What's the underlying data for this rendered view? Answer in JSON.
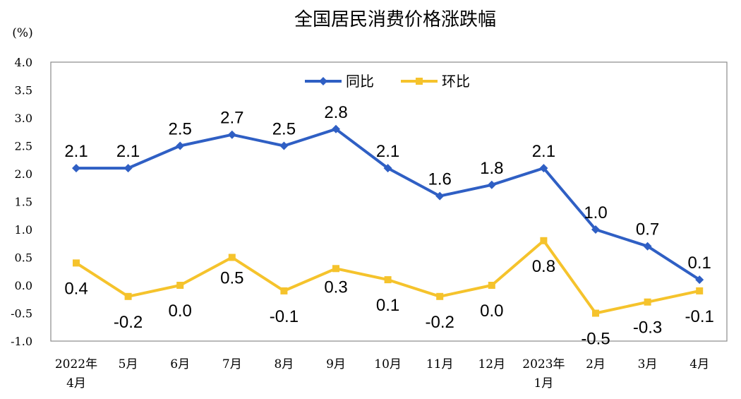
{
  "chart_data": {
    "type": "line",
    "title": "全国居民消费价格涨跌幅",
    "unit_label": "(%)",
    "categories": [
      [
        "2022年",
        "4月"
      ],
      [
        "5月"
      ],
      [
        "6月"
      ],
      [
        "7月"
      ],
      [
        "8月"
      ],
      [
        "9月"
      ],
      [
        "10月"
      ],
      [
        "11月"
      ],
      [
        "12月"
      ],
      [
        "2023年",
        "1月"
      ],
      [
        "2月"
      ],
      [
        "3月"
      ],
      [
        "4月"
      ]
    ],
    "ylim": [
      -1.0,
      4.0
    ],
    "yticks": [
      "4.0",
      "3.5",
      "3.0",
      "2.5",
      "2.0",
      "1.5",
      "1.0",
      "0.5",
      "0.0",
      "-0.5",
      "-1.0"
    ],
    "grid": false,
    "legend_position": "top-center",
    "series": [
      {
        "name": "同比",
        "color": "#2f5fc4",
        "marker": "diamond",
        "values": [
          2.1,
          2.1,
          2.5,
          2.7,
          2.5,
          2.8,
          2.1,
          1.6,
          1.8,
          2.1,
          1.0,
          0.7,
          0.1
        ],
        "labels": [
          "2.1",
          "2.1",
          "2.5",
          "2.7",
          "2.5",
          "2.8",
          "2.1",
          "1.6",
          "1.8",
          "2.1",
          "1.0",
          "0.7",
          "0.1"
        ]
      },
      {
        "name": "环比",
        "color": "#f5c32c",
        "marker": "square",
        "values": [
          0.4,
          -0.2,
          0.0,
          0.5,
          -0.1,
          0.3,
          0.1,
          -0.2,
          0.0,
          0.8,
          -0.5,
          -0.3,
          -0.1
        ],
        "labels": [
          "0.4",
          "-0.2",
          "0.0",
          "0.5",
          "-0.1",
          "0.3",
          "0.1",
          "-0.2",
          "0.0",
          "0.8",
          "-0.5",
          "-0.3",
          "-0.1"
        ]
      }
    ]
  }
}
